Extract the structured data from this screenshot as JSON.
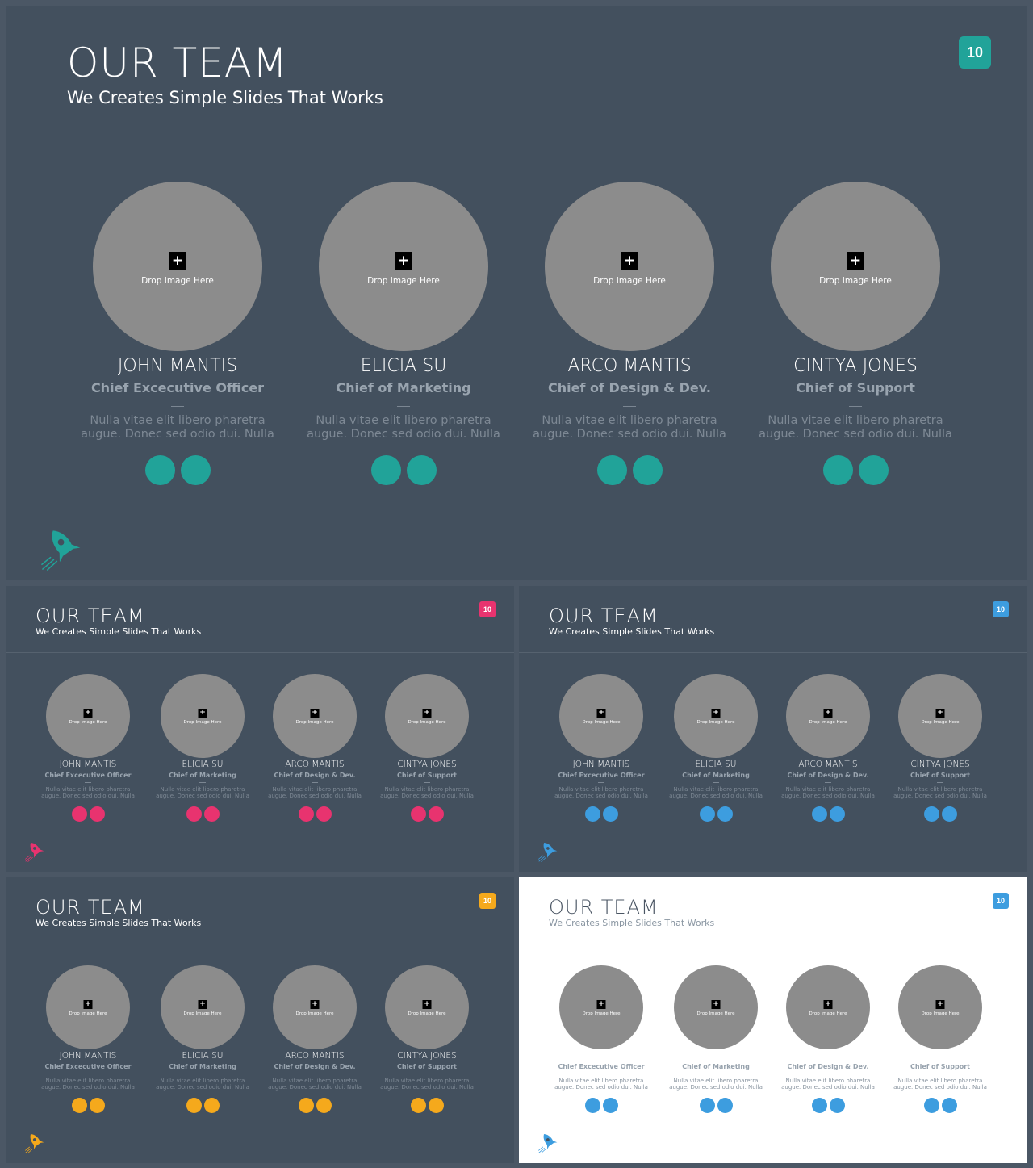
{
  "slides": {
    "main": {
      "title": "OUR TEAM",
      "subtitle": "We Creates Simple Slides That Works",
      "badge": "10",
      "accent": "#21a399",
      "members": [
        {
          "name": "JOHN MANTIS",
          "role": "Chief Excecutive Officer",
          "desc1": "Nulla vitae elit libero pharetra",
          "desc2": "augue. Donec sed odio dui. Nulla",
          "plus": "+",
          "drop": "Drop Image Here"
        },
        {
          "name": "ELICIA SU",
          "role": "Chief of Marketing",
          "desc1": "Nulla vitae elit libero pharetra",
          "desc2": "augue. Donec sed odio dui. Nulla",
          "plus": "+",
          "drop": "Drop Image Here"
        },
        {
          "name": "ARCO MANTIS",
          "role": "Chief of Design & Dev.",
          "desc1": "Nulla vitae elit libero pharetra",
          "desc2": "augue. Donec sed odio dui. Nulla",
          "plus": "+",
          "drop": "Drop Image Here"
        },
        {
          "name": "CINTYA JONES",
          "role": "Chief of Support",
          "desc1": "Nulla vitae elit libero pharetra",
          "desc2": "augue. Donec sed odio dui. Nulla",
          "plus": "+",
          "drop": "Drop Image Here"
        }
      ]
    },
    "pink": {
      "title": "OUR TEAM",
      "subtitle": "We Creates Simple Slides That Works",
      "badge": "10",
      "accent": "#e8336f",
      "members": [
        {
          "name": "JOHN MANTIS",
          "role": "Chief Excecutive Officer",
          "desc1": "Nulla vitae elit libero pharetra",
          "desc2": "augue. Donec sed odio dui. Nulla",
          "plus": "+",
          "drop": "Drop Image Here"
        },
        {
          "name": "ELICIA SU",
          "role": "Chief of Marketing",
          "desc1": "Nulla vitae elit libero pharetra",
          "desc2": "augue. Donec sed odio dui. Nulla",
          "plus": "+",
          "drop": "Drop Image Here"
        },
        {
          "name": "ARCO MANTIS",
          "role": "Chief of Design & Dev.",
          "desc1": "Nulla vitae elit libero pharetra",
          "desc2": "augue. Donec sed odio dui. Nulla",
          "plus": "+",
          "drop": "Drop Image Here"
        },
        {
          "name": "CINTYA JONES",
          "role": "Chief of Support",
          "desc1": "Nulla vitae elit libero pharetra",
          "desc2": "augue. Donec sed odio dui. Nulla",
          "plus": "+",
          "drop": "Drop Image Here"
        }
      ]
    },
    "blue": {
      "title": "OUR TEAM",
      "subtitle": "We Creates Simple Slides That Works",
      "badge": "10",
      "accent": "#3d9ddf",
      "members": [
        {
          "name": "JOHN MANTIS",
          "role": "Chief Excecutive Officer",
          "desc1": "Nulla vitae elit libero pharetra",
          "desc2": "augue. Donec sed odio dui. Nulla",
          "plus": "+",
          "drop": "Drop Image Here"
        },
        {
          "name": "ELICIA SU",
          "role": "Chief of Marketing",
          "desc1": "Nulla vitae elit libero pharetra",
          "desc2": "augue. Donec sed odio dui. Nulla",
          "plus": "+",
          "drop": "Drop Image Here"
        },
        {
          "name": "ARCO MANTIS",
          "role": "Chief of Design & Dev.",
          "desc1": "Nulla vitae elit libero pharetra",
          "desc2": "augue. Donec sed odio dui. Nulla",
          "plus": "+",
          "drop": "Drop Image Here"
        },
        {
          "name": "CINTYA JONES",
          "role": "Chief of Support",
          "desc1": "Nulla vitae elit libero pharetra",
          "desc2": "augue. Donec sed odio dui. Nulla",
          "plus": "+",
          "drop": "Drop Image Here"
        }
      ]
    },
    "yellow": {
      "title": "OUR TEAM",
      "subtitle": "We Creates Simple Slides That Works",
      "badge": "10",
      "accent": "#f5a91c",
      "members": [
        {
          "name": "JOHN MANTIS",
          "role": "Chief Excecutive Officer",
          "desc1": "Nulla vitae elit libero pharetra",
          "desc2": "augue. Donec sed odio dui. Nulla",
          "plus": "+",
          "drop": "Drop Image Here"
        },
        {
          "name": "ELICIA SU",
          "role": "Chief of Marketing",
          "desc1": "Nulla vitae elit libero pharetra",
          "desc2": "augue. Donec sed odio dui. Nulla",
          "plus": "+",
          "drop": "Drop Image Here"
        },
        {
          "name": "ARCO MANTIS",
          "role": "Chief of Design & Dev.",
          "desc1": "Nulla vitae elit libero pharetra",
          "desc2": "augue. Donec sed odio dui. Nulla",
          "plus": "+",
          "drop": "Drop Image Here"
        },
        {
          "name": "CINTYA JONES",
          "role": "Chief of Support",
          "desc1": "Nulla vitae elit libero pharetra",
          "desc2": "augue. Donec sed odio dui. Nulla",
          "plus": "+",
          "drop": "Drop Image Here"
        }
      ]
    },
    "light": {
      "title": "OUR TEAM",
      "subtitle": "We Creates Simple Slides That Works",
      "badge": "10",
      "accent": "#3d9ddf",
      "members": [
        {
          "name": "",
          "role": "Chief Excecutive Officer",
          "desc1": "Nulla vitae elit libero pharetra",
          "desc2": "augue. Donec sed odio dui. Nulla",
          "plus": "+",
          "drop": "Drop Image Here"
        },
        {
          "name": "",
          "role": "Chief of Marketing",
          "desc1": "Nulla vitae elit libero pharetra",
          "desc2": "augue. Donec sed odio dui. Nulla",
          "plus": "+",
          "drop": "Drop Image Here"
        },
        {
          "name": "",
          "role": "Chief of Design & Dev.",
          "desc1": "Nulla vitae elit libero pharetra",
          "desc2": "augue. Donec sed odio dui. Nulla",
          "plus": "+",
          "drop": "Drop Image Here"
        },
        {
          "name": "",
          "role": "Chief of Support",
          "desc1": "Nulla vitae elit libero pharetra",
          "desc2": "augue. Donec sed odio dui. Nulla",
          "plus": "+",
          "drop": "Drop Image Here"
        }
      ]
    }
  },
  "icons": {
    "photo": "image-placeholder-icon",
    "social": "social-dot-icon",
    "rocket": "rocket-icon"
  }
}
